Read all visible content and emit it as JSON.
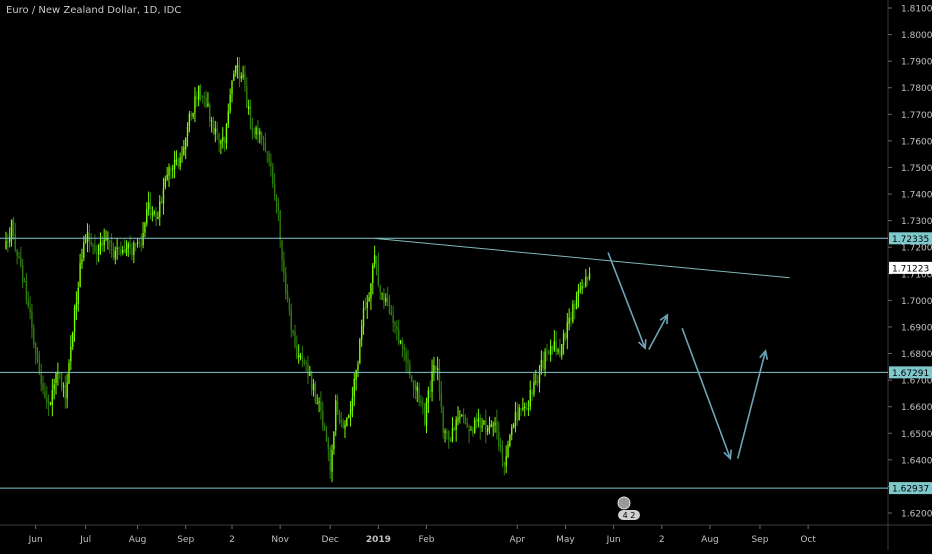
{
  "chart_data": {
    "type": "candlestick",
    "title": "Euro / New Zealand Dollar, 1D, IDC",
    "colors": {
      "background": "#000000",
      "up": "#7cfc00",
      "down": "#2e7d0c",
      "level_line": "#7fc8cc",
      "trend_line": "#7fb8b8",
      "arrow": "#6fa3b8",
      "axis_text": "#c0c0c0",
      "price_label_bg": "#7fc8cc",
      "price_label_text": "#000000",
      "current_label_bg": "#ffffff"
    },
    "y_axis": {
      "range": [
        1.613,
        1.812
      ],
      "ticks": [
        "1.81000",
        "1.80000",
        "1.79000",
        "1.78000",
        "1.77000",
        "1.76000",
        "1.75000",
        "1.74000",
        "1.73000",
        "1.72000",
        "1.71000",
        "1.70000",
        "1.69000",
        "1.68000",
        "1.67000",
        "1.66000",
        "1.65000",
        "1.64000",
        "1.63000",
        "1.62000"
      ],
      "tick_values": [
        1.81,
        1.8,
        1.79,
        1.78,
        1.77,
        1.76,
        1.75,
        1.74,
        1.73,
        1.72,
        1.71,
        1.7,
        1.69,
        1.68,
        1.67,
        1.66,
        1.65,
        1.64,
        1.63,
        1.62
      ]
    },
    "x_axis": {
      "range": [
        0,
        470
      ],
      "labels": [
        {
          "text": "Jun",
          "day": 16
        },
        {
          "text": "Jul",
          "day": 43
        },
        {
          "text": "Aug",
          "day": 71
        },
        {
          "text": "Sep",
          "day": 97
        },
        {
          "text": "2",
          "day": 122
        },
        {
          "text": "Nov",
          "day": 148
        },
        {
          "text": "Dec",
          "day": 175
        },
        {
          "text": "2019",
          "day": 201,
          "bold": true
        },
        {
          "text": "Feb",
          "day": 227
        },
        {
          "text": "Apr",
          "day": 276
        },
        {
          "text": "May",
          "day": 302
        },
        {
          "text": "Jun",
          "day": 328
        },
        {
          "text": "2",
          "day": 354
        },
        {
          "text": "Aug",
          "day": 380
        },
        {
          "text": "Sep",
          "day": 407
        },
        {
          "text": "Oct",
          "day": 433
        }
      ]
    },
    "levels": [
      {
        "value": 1.72335,
        "label": "1.72335"
      },
      {
        "value": 1.67291,
        "label": "1.67291"
      },
      {
        "value": 1.62937,
        "label": "1.62937"
      }
    ],
    "current_price": {
      "value": 1.71223,
      "label": "1.71223"
    },
    "trendline": {
      "from": [
        199,
        1.7233
      ],
      "to": [
        423,
        1.7085
      ]
    },
    "arrows": [
      [
        [
          325,
          1.718
        ],
        [
          345,
          1.682
        ]
      ],
      [
        [
          347,
          1.6815
        ],
        [
          357,
          1.6945
        ]
      ],
      [
        [
          365,
          1.6895
        ],
        [
          391,
          1.6405
        ]
      ],
      [
        [
          395,
          1.6405
        ],
        [
          410,
          1.681
        ]
      ]
    ],
    "waypoints": [
      [
        0,
        1.72
      ],
      [
        3,
        1.728
      ],
      [
        8,
        1.712
      ],
      [
        12,
        1.698
      ],
      [
        16,
        1.68
      ],
      [
        19,
        1.666
      ],
      [
        23,
        1.66
      ],
      [
        28,
        1.675
      ],
      [
        32,
        1.662
      ],
      [
        36,
        1.69
      ],
      [
        40,
        1.712
      ],
      [
        44,
        1.726
      ],
      [
        48,
        1.716
      ],
      [
        53,
        1.724
      ],
      [
        58,
        1.716
      ],
      [
        65,
        1.72
      ],
      [
        72,
        1.719
      ],
      [
        76,
        1.735
      ],
      [
        82,
        1.732
      ],
      [
        88,
        1.75
      ],
      [
        94,
        1.752
      ],
      [
        99,
        1.768
      ],
      [
        104,
        1.78
      ],
      [
        109,
        1.772
      ],
      [
        113,
        1.763
      ],
      [
        118,
        1.76
      ],
      [
        123,
        1.788
      ],
      [
        128,
        1.784
      ],
      [
        132,
        1.766
      ],
      [
        138,
        1.76
      ],
      [
        143,
        1.75
      ],
      [
        147,
        1.733
      ],
      [
        149,
        1.713
      ],
      [
        153,
        1.696
      ],
      [
        156,
        1.68
      ],
      [
        160,
        1.676
      ],
      [
        164,
        1.671
      ],
      [
        168,
        1.662
      ],
      [
        172,
        1.653
      ],
      [
        175,
        1.636
      ],
      [
        178,
        1.661
      ],
      [
        182,
        1.653
      ],
      [
        186,
        1.661
      ],
      [
        190,
        1.678
      ],
      [
        193,
        1.696
      ],
      [
        196,
        1.702
      ],
      [
        199,
        1.716
      ],
      [
        202,
        1.703
      ],
      [
        206,
        1.698
      ],
      [
        210,
        1.691
      ],
      [
        214,
        1.682
      ],
      [
        218,
        1.673
      ],
      [
        222,
        1.667
      ],
      [
        226,
        1.656
      ],
      [
        230,
        1.672
      ],
      [
        233,
        1.676
      ],
      [
        236,
        1.652
      ],
      [
        240,
        1.649
      ],
      [
        245,
        1.656
      ],
      [
        250,
        1.65
      ],
      [
        255,
        1.654
      ],
      [
        260,
        1.651
      ],
      [
        265,
        1.652
      ],
      [
        268,
        1.637
      ],
      [
        271,
        1.644
      ],
      [
        275,
        1.656
      ],
      [
        280,
        1.659
      ],
      [
        285,
        1.667
      ],
      [
        290,
        1.677
      ],
      [
        295,
        1.683
      ],
      [
        299,
        1.679
      ],
      [
        303,
        1.691
      ],
      [
        307,
        1.699
      ],
      [
        311,
        1.707
      ],
      [
        315,
        1.709
      ]
    ],
    "seed": 20190514
  },
  "badge": {
    "text": "4 2"
  }
}
